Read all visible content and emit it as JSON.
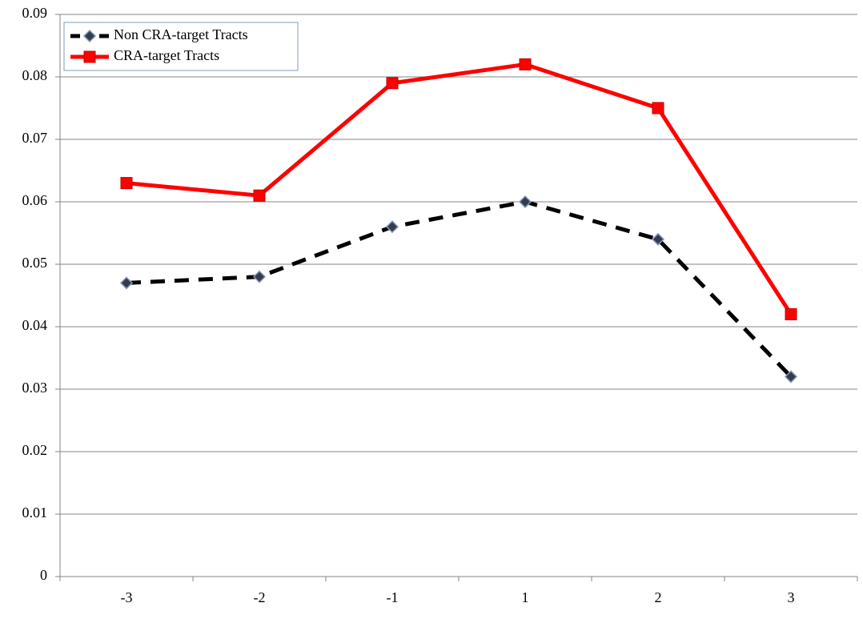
{
  "chart_data": {
    "type": "line",
    "categories": [
      "-3",
      "-2",
      "-1",
      "1",
      "2",
      "3"
    ],
    "series": [
      {
        "name": "Non CRA-target Tracts",
        "color": "#000000",
        "marker": "diamond",
        "line_style": "dashed",
        "values": [
          0.047,
          0.048,
          0.056,
          0.06,
          0.054,
          0.032
        ]
      },
      {
        "name": "CRA-target Tracts",
        "color": "#ff0000",
        "marker": "square",
        "line_style": "solid",
        "values": [
          0.063,
          0.061,
          0.079,
          0.082,
          0.075,
          0.042
        ]
      }
    ],
    "ylim": [
      0,
      0.09
    ],
    "yticks": [
      0,
      0.01,
      0.02,
      0.03,
      0.04,
      0.05,
      0.06,
      0.07,
      0.08,
      0.09
    ],
    "grid": true,
    "legend": "top-left"
  }
}
